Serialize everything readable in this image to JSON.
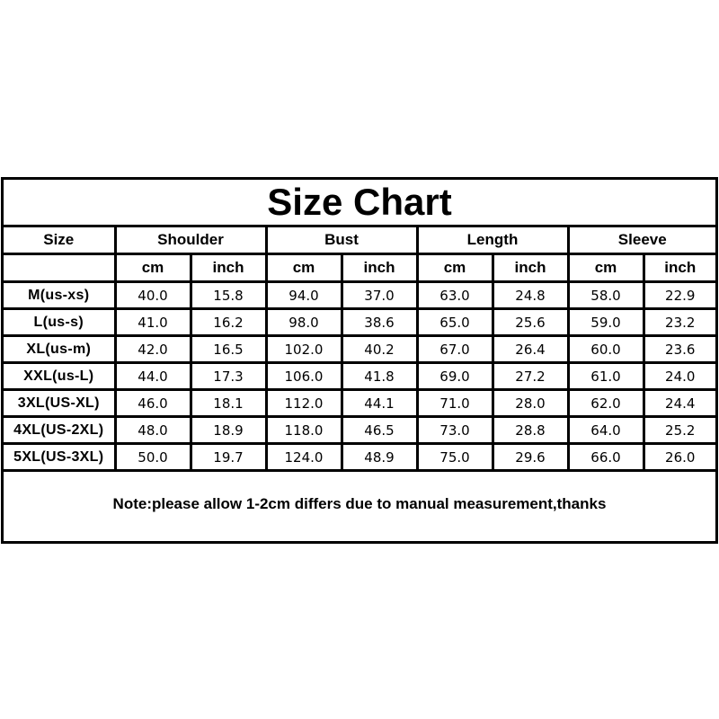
{
  "title": "Size Chart",
  "headers": {
    "size": "Size",
    "groups": [
      "Shoulder",
      "Bust",
      "Length",
      "Sleeve"
    ]
  },
  "units": [
    "cm",
    "inch",
    "cm",
    "inch",
    "cm",
    "inch",
    "cm",
    "inch"
  ],
  "rows": [
    {
      "size": "M(us-xs)",
      "values": [
        "40.0",
        "15.8",
        "94.0",
        "37.0",
        "63.0",
        "24.8",
        "58.0",
        "22.9"
      ]
    },
    {
      "size": "L(us-s)",
      "values": [
        "41.0",
        "16.2",
        "98.0",
        "38.6",
        "65.0",
        "25.6",
        "59.0",
        "23.2"
      ]
    },
    {
      "size": "XL(us-m)",
      "values": [
        "42.0",
        "16.5",
        "102.0",
        "40.2",
        "67.0",
        "26.4",
        "60.0",
        "23.6"
      ]
    },
    {
      "size": "XXL(us-L)",
      "values": [
        "44.0",
        "17.3",
        "106.0",
        "41.8",
        "69.0",
        "27.2",
        "61.0",
        "24.0"
      ]
    },
    {
      "size": "3XL(US-XL)",
      "values": [
        "46.0",
        "18.1",
        "112.0",
        "44.1",
        "71.0",
        "28.0",
        "62.0",
        "24.4"
      ]
    },
    {
      "size": "4XL(US-2XL)",
      "values": [
        "48.0",
        "18.9",
        "118.0",
        "46.5",
        "73.0",
        "28.8",
        "64.0",
        "25.2"
      ]
    },
    {
      "size": "5XL(US-3XL)",
      "values": [
        "50.0",
        "19.7",
        "124.0",
        "48.9",
        "75.0",
        "29.6",
        "66.0",
        "26.0"
      ]
    }
  ],
  "note": "Note:please allow 1-2cm differs due to manual measurement,thanks"
}
